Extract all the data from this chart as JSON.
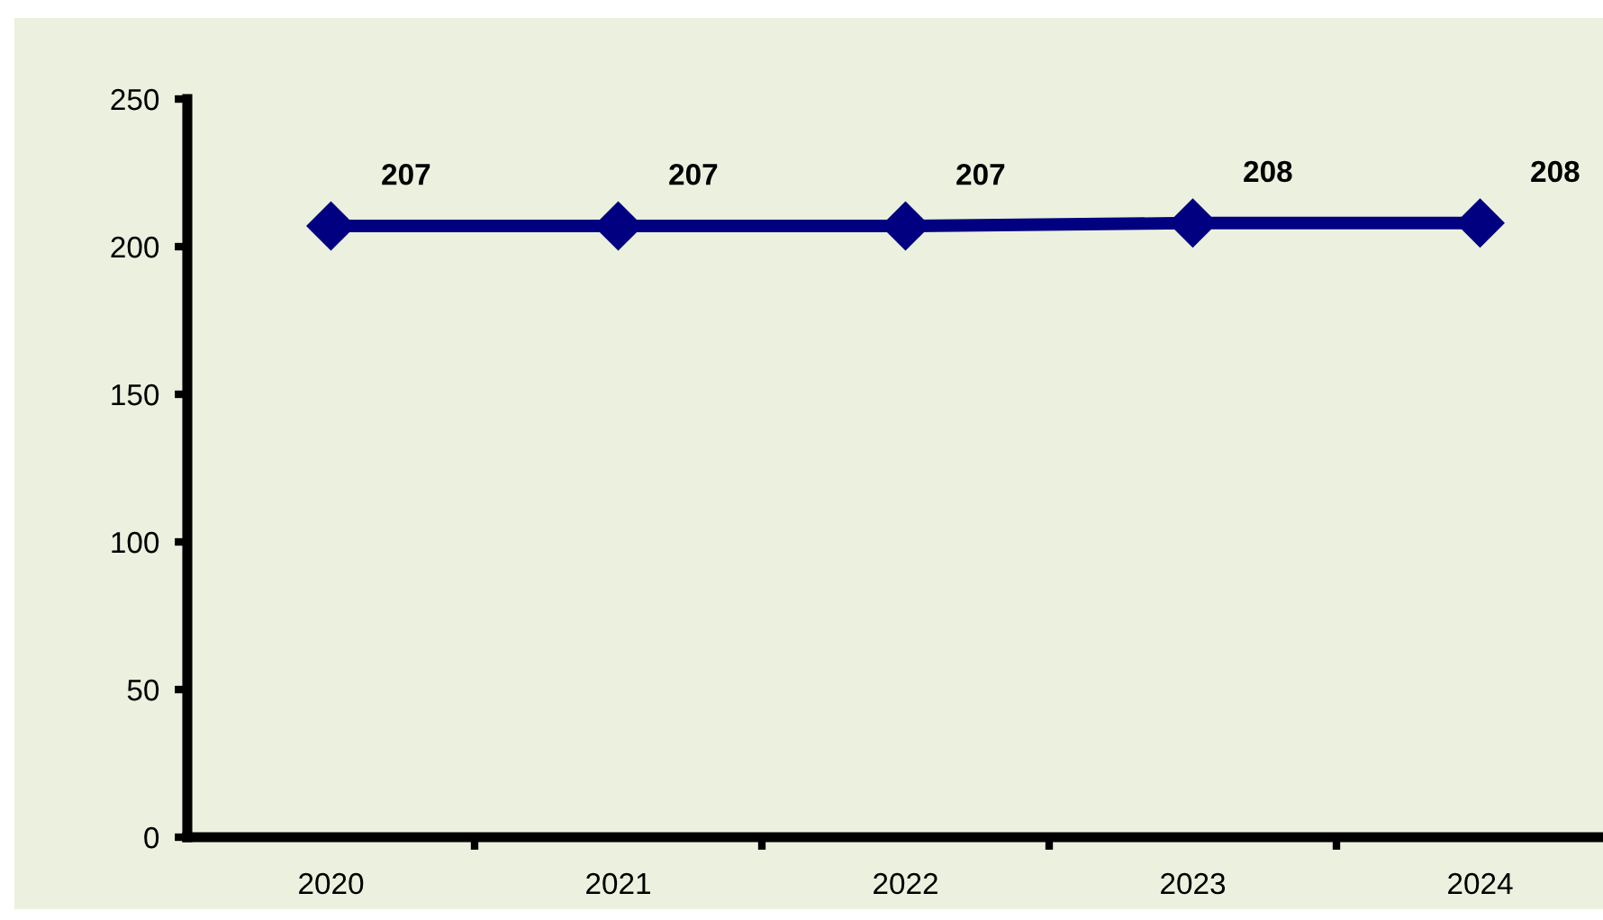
{
  "chart_data": {
    "type": "line",
    "categories": [
      "2020",
      "2021",
      "2022",
      "2023",
      "2024"
    ],
    "series": [
      {
        "color": "#000080",
        "values": [
          207,
          207,
          207,
          208,
          208
        ]
      }
    ],
    "ylim": [
      0,
      250
    ],
    "yticks": [
      0,
      50,
      100,
      150,
      200,
      250
    ],
    "marker": "diamond",
    "line_style": "solid",
    "data_labels": true,
    "grid": false,
    "legend": false
  }
}
